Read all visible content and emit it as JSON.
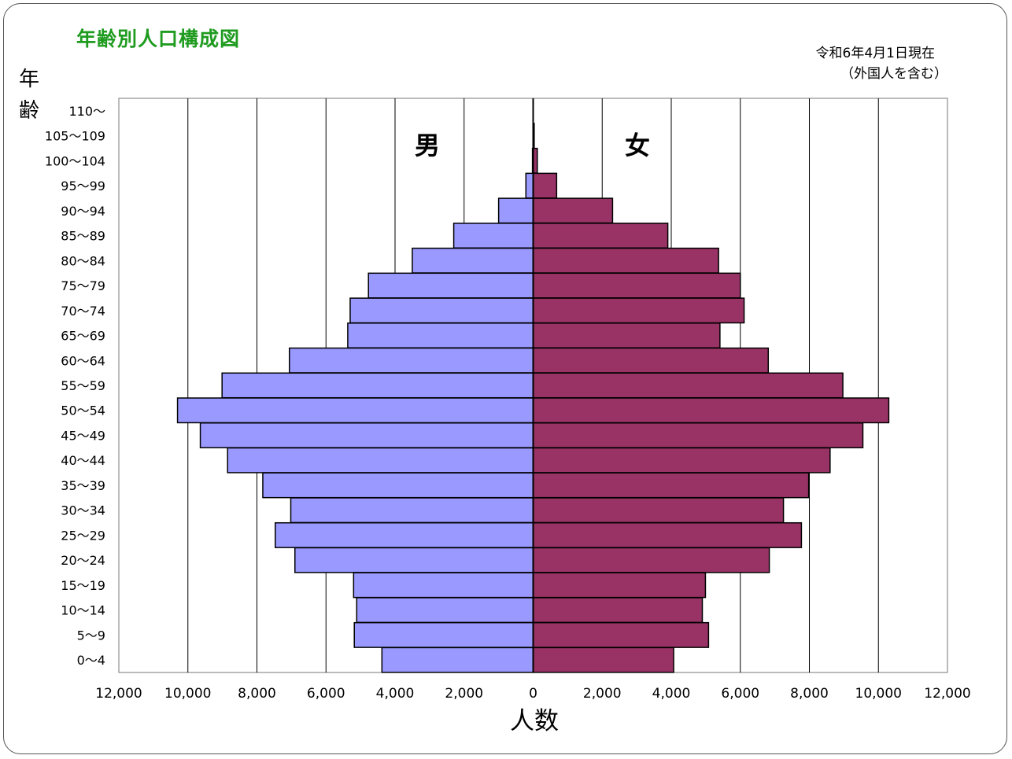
{
  "title": "年齢別人口構成図",
  "date_note": "令和6年4月1日現在",
  "scope_note": "（外国人を含む）",
  "colors": {
    "male": "#9999ff",
    "female": "#993366",
    "title": "#1f9b1f",
    "grid": "#000000"
  },
  "chart_data": {
    "type": "bar",
    "orientation": "horizontal",
    "layout": "population-pyramid",
    "ylabel_top": "年",
    "ylabel_bottom": "齢",
    "xlabel": "人数",
    "xlim": [
      -12000,
      12000
    ],
    "x_ticks": [
      -12000,
      -10000,
      -8000,
      -6000,
      -4000,
      -2000,
      0,
      2000,
      4000,
      6000,
      8000,
      10000,
      12000
    ],
    "x_tick_labels": [
      "12,000",
      "10,000",
      "8,000",
      "6,000",
      "4,000",
      "2,000",
      "0",
      "2,000",
      "4,000",
      "6,000",
      "8,000",
      "10,000",
      "12,000"
    ],
    "grid": "vertical",
    "categories": [
      "110～",
      "105～109",
      "100～104",
      "95～99",
      "90～94",
      "85～89",
      "80～84",
      "75～79",
      "70～74",
      "65～69",
      "60～64",
      "55～59",
      "50～54",
      "45～49",
      "40～44",
      "35～39",
      "30～34",
      "25～29",
      "20～24",
      "15～19",
      "10～14",
      "5～9",
      "0～4"
    ],
    "series": [
      {
        "name": "男",
        "side": "left",
        "values": [
          0,
          3,
          20,
          210,
          1000,
          2300,
          3500,
          4770,
          5300,
          5370,
          7060,
          9010,
          10300,
          9640,
          8850,
          7830,
          7020,
          7470,
          6900,
          5200,
          5110,
          5180,
          4380
        ]
      },
      {
        "name": "女",
        "side": "right",
        "values": [
          0,
          30,
          120,
          680,
          2300,
          3900,
          5370,
          6000,
          6110,
          5410,
          6810,
          8970,
          10300,
          9550,
          8600,
          7980,
          7250,
          7770,
          6840,
          4990,
          4900,
          5080,
          4070
        ]
      }
    ]
  }
}
